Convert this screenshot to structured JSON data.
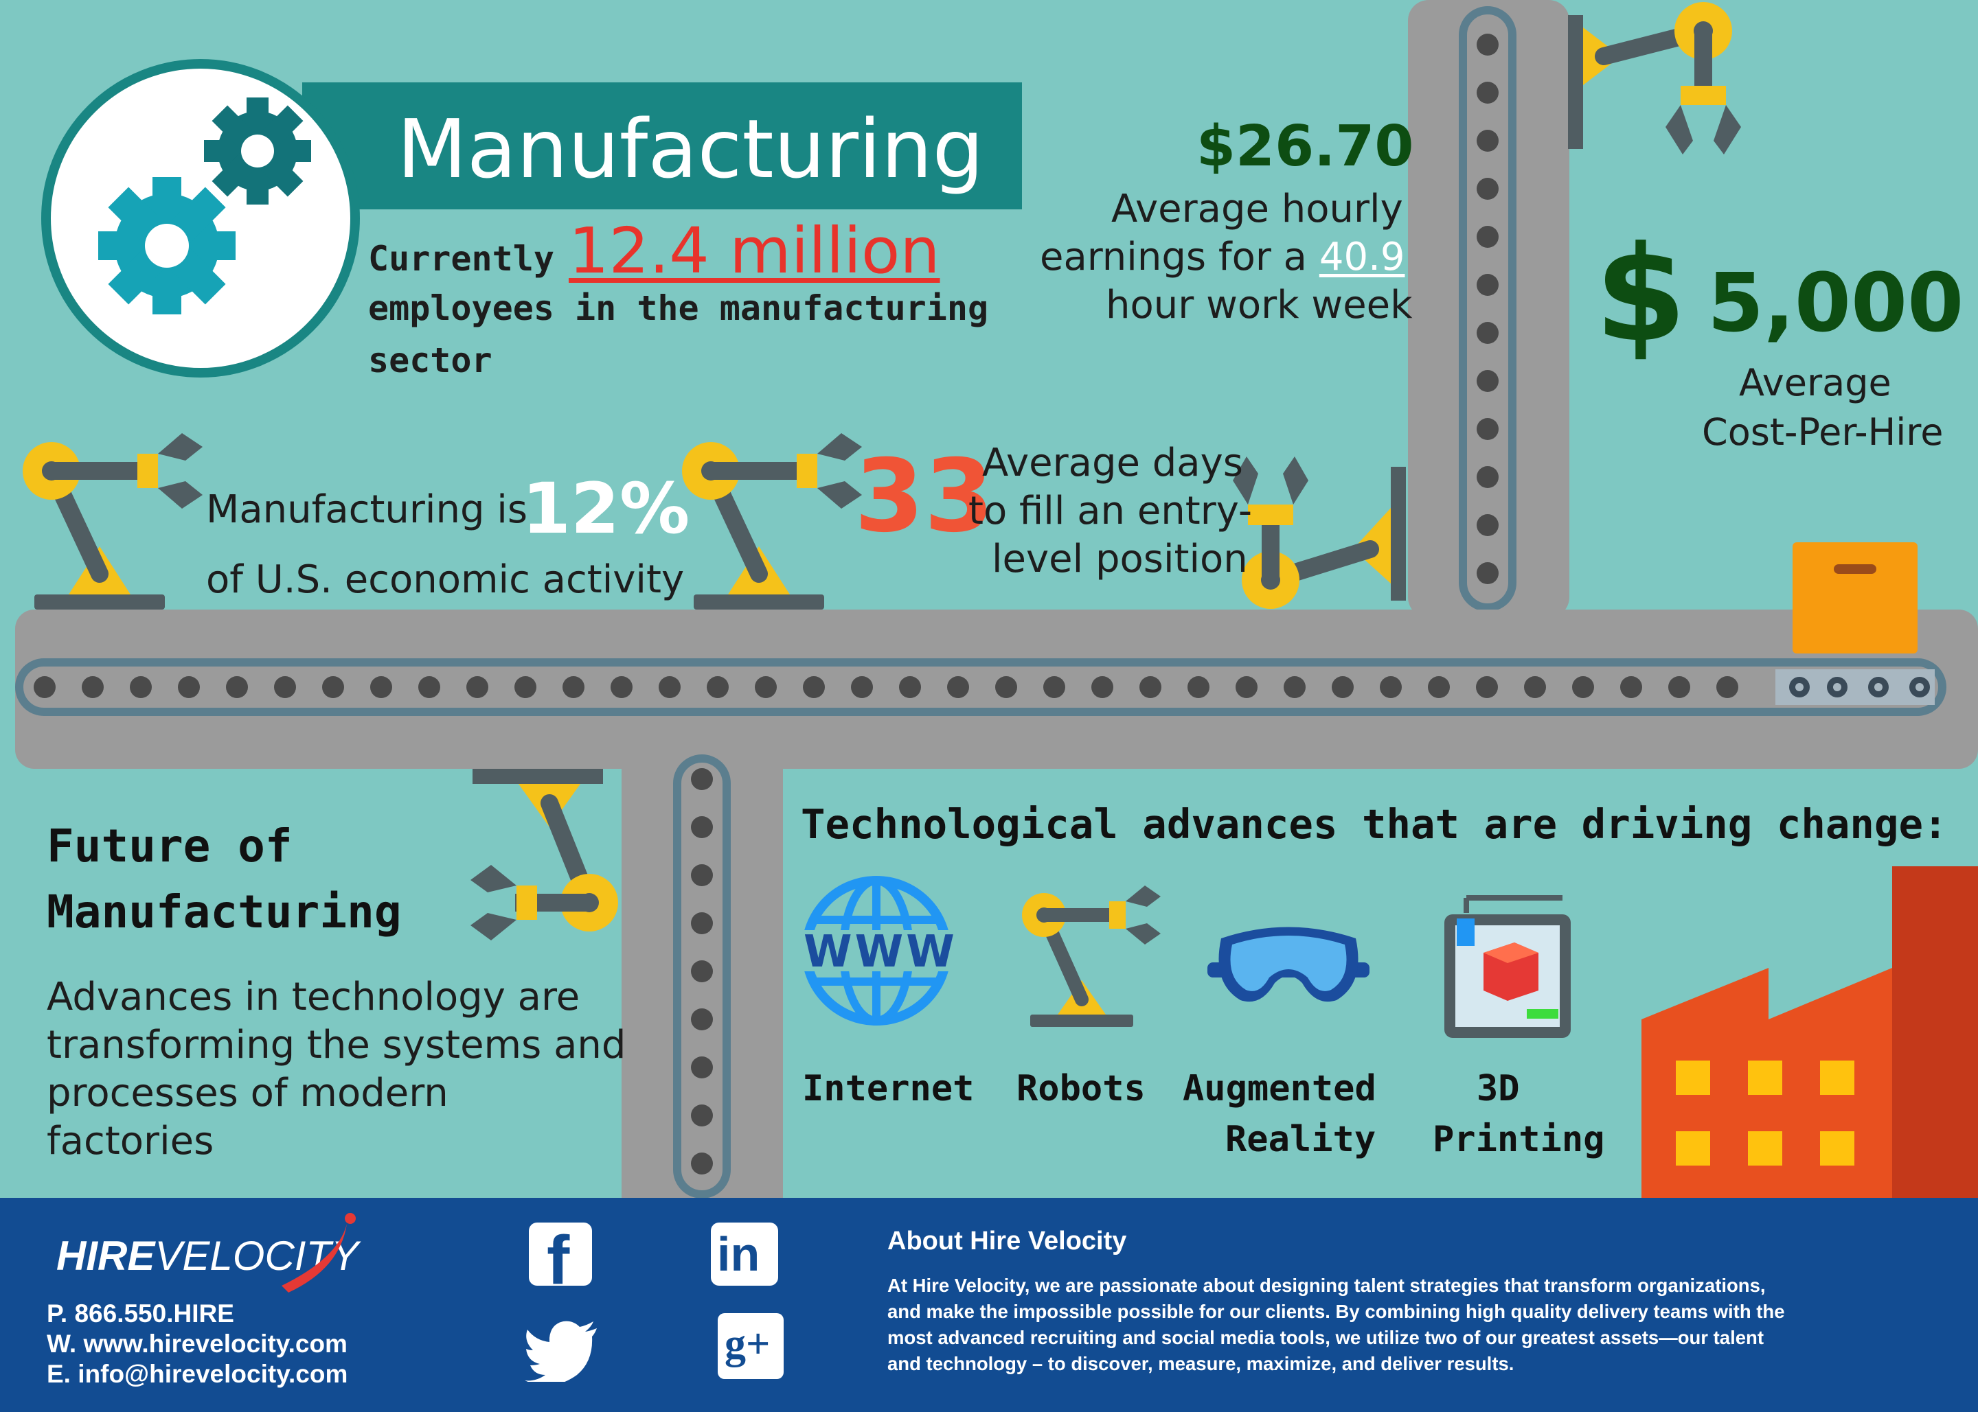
{
  "title": "Manufacturing",
  "employees": {
    "prefix": "Currently",
    "value": "12.4 million",
    "line2": "employees in the manufacturing",
    "line3": "sector"
  },
  "hourly": {
    "value": "$26.70",
    "line1": "Average hourly",
    "line2_pre": "earnings for a",
    "hours": "40.9",
    "line3": "hour work week"
  },
  "cost": {
    "symbol": "$",
    "value": "5,000",
    "line1": "Average",
    "line2": "Cost-Per-Hire"
  },
  "economic": {
    "pre": "Manufacturing is",
    "value": "12%",
    "line2": "of U.S. economic activity"
  },
  "days": {
    "value": "33",
    "line1": "Average days",
    "line2": "to fill an entry-",
    "line3": "level position"
  },
  "future": {
    "heading1": "Future of",
    "heading2": "Manufacturing",
    "body1": "Advances in technology are",
    "body2": "transforming the systems and",
    "body3": "processes of modern",
    "body4": "factories"
  },
  "tech": {
    "heading": "Technological advances that are driving change:",
    "www": "WWW",
    "items": [
      {
        "line1": "Internet",
        "line2": "",
        "icon": "globe-icon"
      },
      {
        "line1": "Robots",
        "line2": "",
        "icon": "robot-arm-icon"
      },
      {
        "line1": "Augmented",
        "line2": "Reality",
        "icon": "vr-goggles-icon"
      },
      {
        "line1": "3D",
        "line2": "Printing",
        "icon": "3d-printer-icon"
      }
    ]
  },
  "footer": {
    "logo_a": "HIRE",
    "logo_b": "VELOCITY",
    "phone": "P. 866.550.HIRE",
    "web": "W. www.hirevelocity.com",
    "email": "E. info@hirevelocity.com",
    "about_heading": "About Hire Velocity",
    "about_1": "At Hire Velocity, we are passionate about designing talent strategies that transform organizations,",
    "about_2": "and make the impossible possible for our clients. By combining high quality delivery teams with the",
    "about_3": "most advanced recruiting and social media tools, we utilize two of our greatest assets—our talent",
    "about_4": "and technology – to discover, measure, maximize, and deliver results.",
    "social": [
      "facebook-icon",
      "linkedin-icon",
      "twitter-icon",
      "google-plus-icon"
    ],
    "fb_glyph": "f",
    "in_glyph": "in",
    "gp_glyph": "g+"
  },
  "colors": {
    "background": "#7ec8c2",
    "banner": "#198683",
    "gear": "#16a3b6",
    "gear_dark": "#137379",
    "red": "#e8332b",
    "dark_green": "#0d4d12",
    "orange_red": "#f05436",
    "footer": "#124c92",
    "conveyor": "#9b9b9b",
    "robot_yellow": "#f5c21a",
    "robot_gray": "#505d62"
  }
}
